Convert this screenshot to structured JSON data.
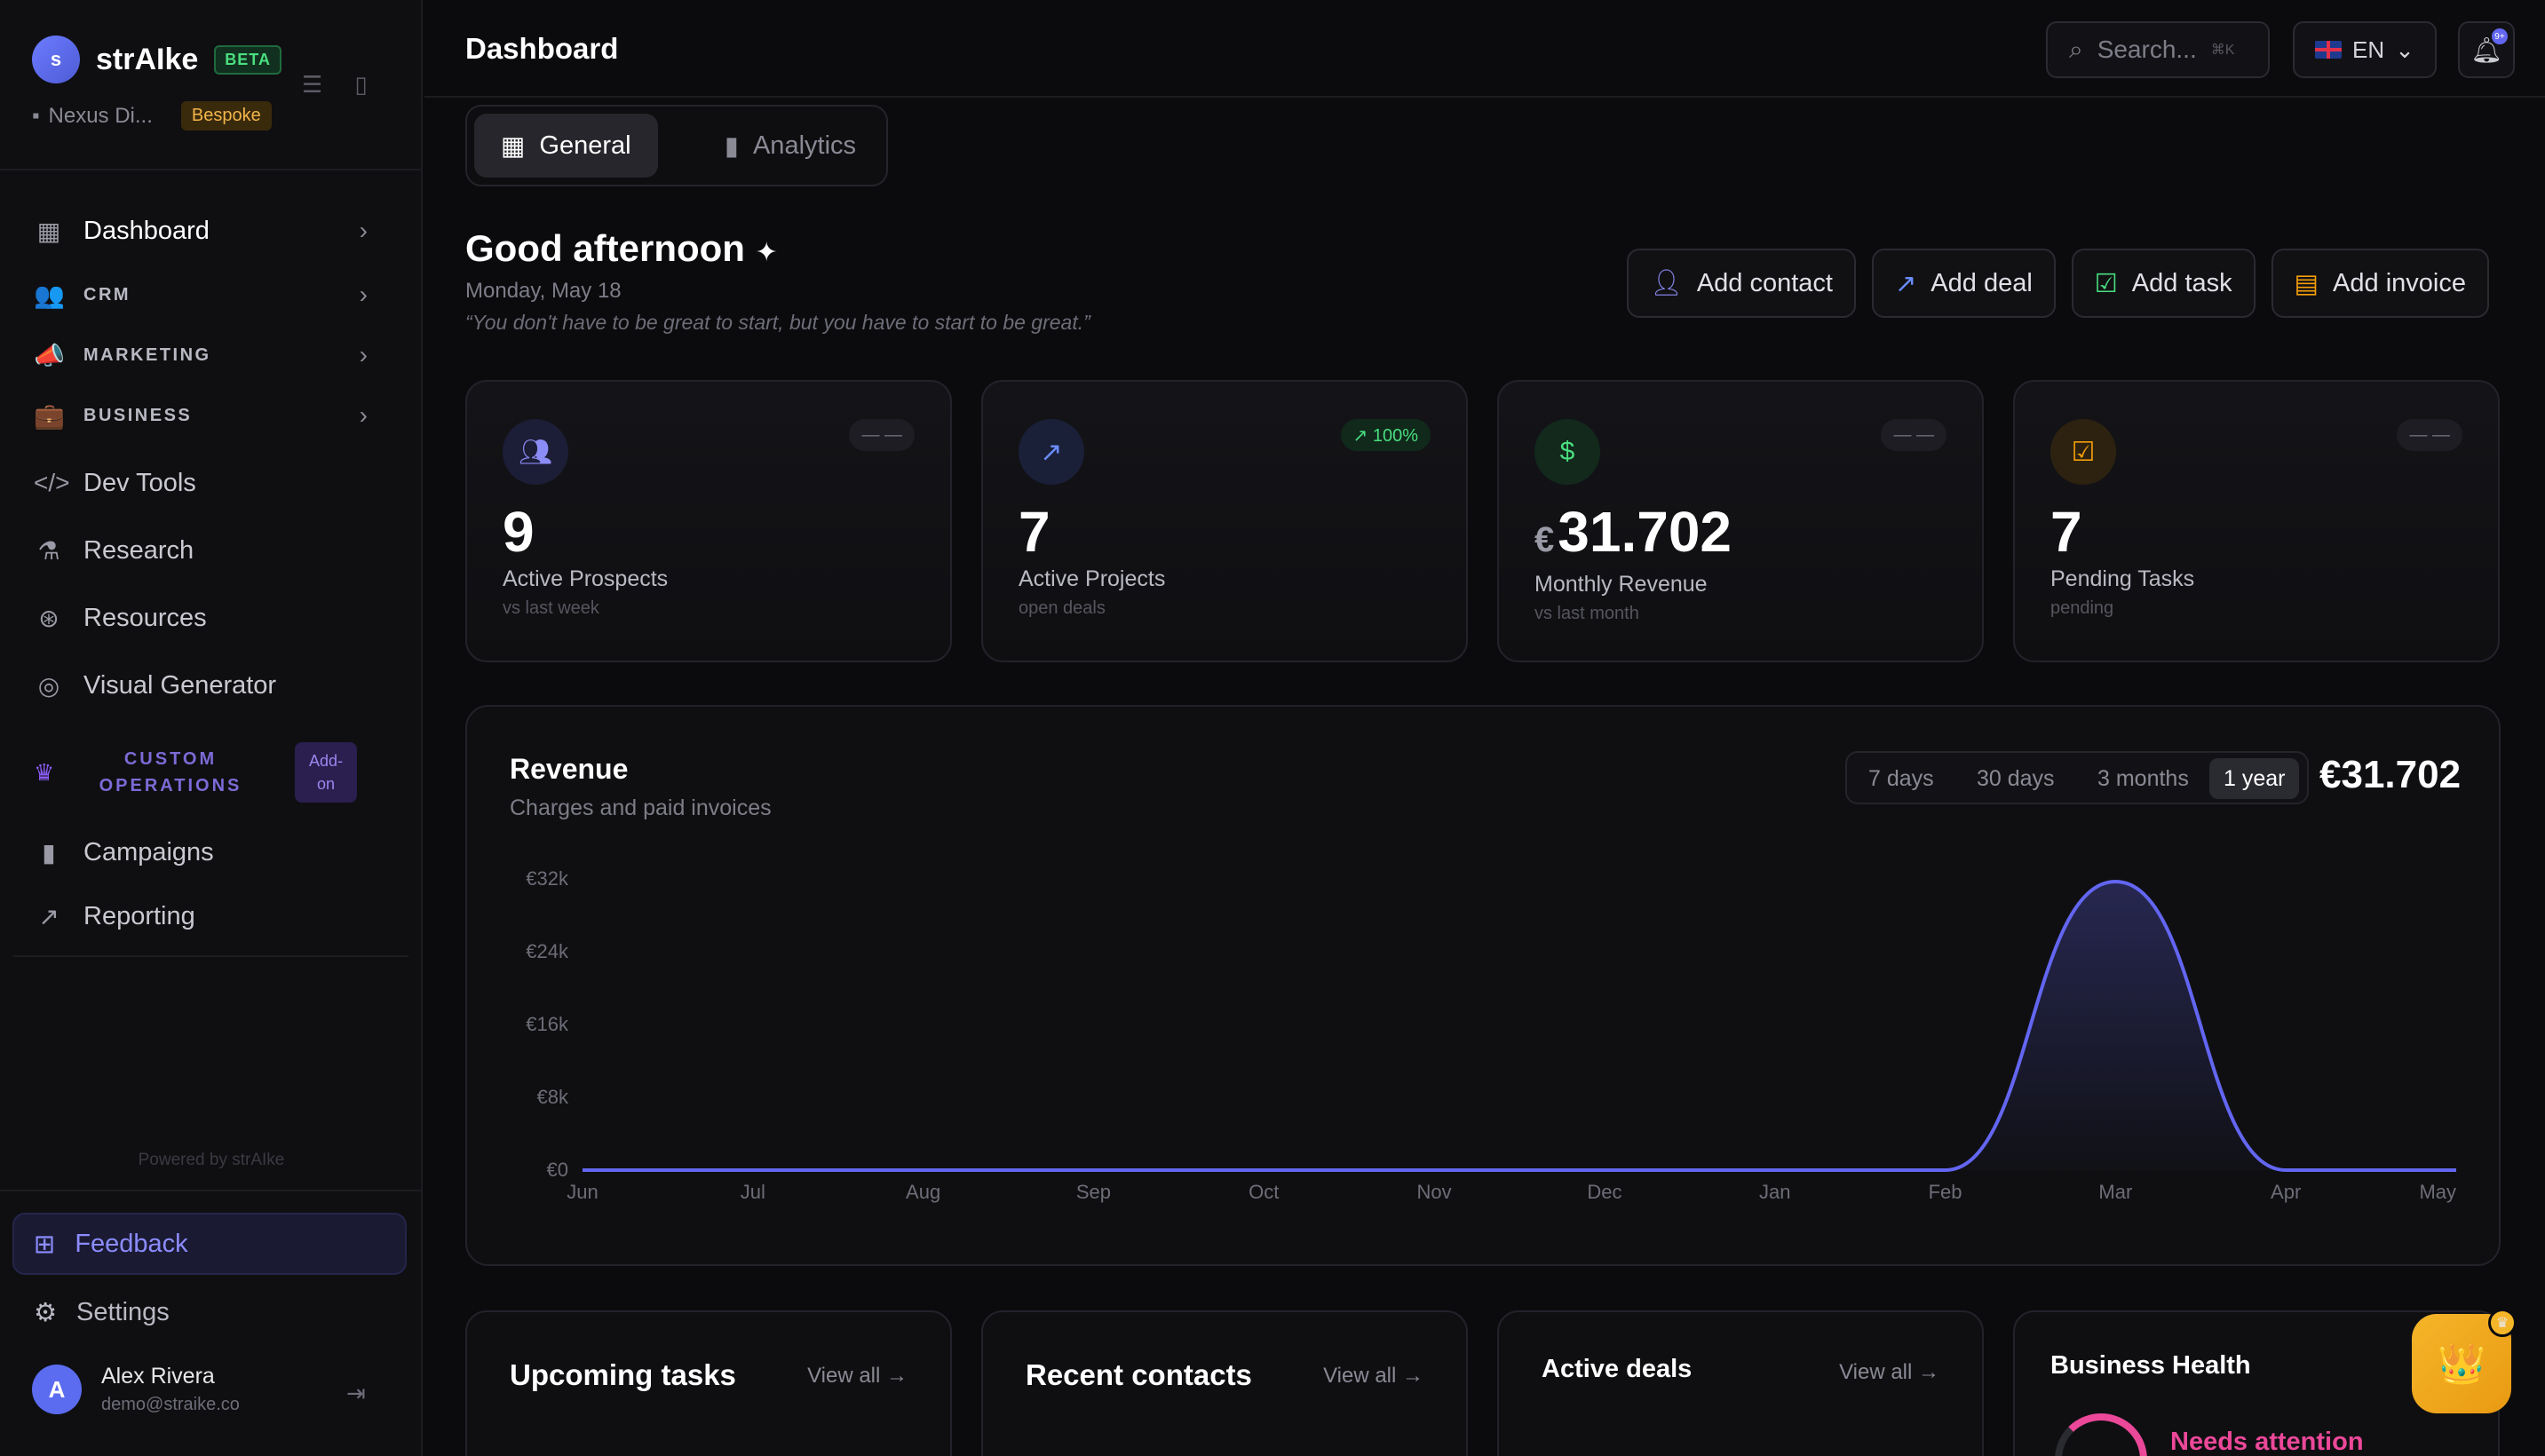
{
  "brand": {
    "logo_letter": "s",
    "name": "strAIke",
    "badge": "BETA",
    "org": "Nexus Di...",
    "org_tag": "Bespoke"
  },
  "sidebar": {
    "items": [
      {
        "label": "Dashboard",
        "icon": "grid-icon"
      },
      {
        "label": "CRM",
        "icon": "people-icon"
      },
      {
        "label": "MARKETING",
        "icon": "megaphone-icon"
      },
      {
        "label": "BUSINESS",
        "icon": "briefcase-icon"
      },
      {
        "label": "Dev Tools",
        "icon": "code-icon"
      },
      {
        "label": "Research",
        "icon": "flask-icon"
      },
      {
        "label": "Resources",
        "icon": "lifebuoy-icon"
      },
      {
        "label": "Visual Generator",
        "icon": "palette-icon"
      }
    ],
    "custom_ops": {
      "line1": "CUSTOM",
      "line2": "OPERATIONS",
      "addon1": "Add-",
      "addon2": "on"
    },
    "ops_items": [
      {
        "label": "Campaigns",
        "icon": "bar-chart-icon"
      },
      {
        "label": "Reporting",
        "icon": "trend-icon"
      }
    ],
    "powered": "Powered by strAIke",
    "feedback": "Feedback",
    "settings": "Settings",
    "user": {
      "initial": "A",
      "name": "Alex Rivera",
      "email": "demo@straike.co"
    }
  },
  "header": {
    "title": "Dashboard",
    "search_placeholder": "Search...",
    "search_kbd": "⌘K",
    "lang": "EN",
    "notif_badge": "9+"
  },
  "tabs": [
    {
      "label": "General"
    },
    {
      "label": "Analytics"
    }
  ],
  "greeting": {
    "title": "Good afternoon",
    "date": "Monday, May 18",
    "quote": "“You don't have to be great to start, but you have to start to be great.”"
  },
  "actions": [
    "Add contact",
    "Add deal",
    "Add task",
    "Add invoice"
  ],
  "stats": [
    {
      "value": "9",
      "label": "Active Prospects",
      "sub": "vs last week",
      "pill": "— —",
      "color": "#8b8cf5"
    },
    {
      "value": "7",
      "label": "Active Projects",
      "sub": "open deals",
      "pill": "↗ 100%",
      "color": "#6b8cff"
    },
    {
      "currency": "€",
      "value": "31.702",
      "label": "Monthly Revenue",
      "sub": "vs last month",
      "pill": "— —",
      "color": "#4ade80"
    },
    {
      "value": "7",
      "label": "Pending Tasks",
      "sub": "pending",
      "pill": "— —",
      "color": "#f59e0b"
    }
  ],
  "revenue": {
    "title": "Revenue",
    "subtitle": "Charges and paid invoices",
    "ranges": [
      "7 days",
      "30 days",
      "3 months",
      "1 year"
    ],
    "selected_range": "1 year",
    "total": "€31.702"
  },
  "chart_data": {
    "type": "area",
    "x": [
      "Jun",
      "Jul",
      "Aug",
      "Sep",
      "Oct",
      "Nov",
      "Dec",
      "Jan",
      "Feb",
      "Mar",
      "Apr",
      "May"
    ],
    "y_tick_labels": [
      "€0",
      "€8k",
      "€16k",
      "€24k",
      "€32k"
    ],
    "ylim": [
      0,
      32000
    ],
    "series": [
      {
        "values": [
          0,
          0,
          0,
          0,
          0,
          0,
          0,
          0,
          0,
          31702,
          0,
          0
        ]
      }
    ],
    "color": "#6366f1"
  },
  "bottom": {
    "upcoming": "Upcoming tasks",
    "recent": "Recent contacts",
    "deals": "Active deals",
    "health": "Business Health",
    "view_all": "View all",
    "health_status": "Needs attention"
  }
}
